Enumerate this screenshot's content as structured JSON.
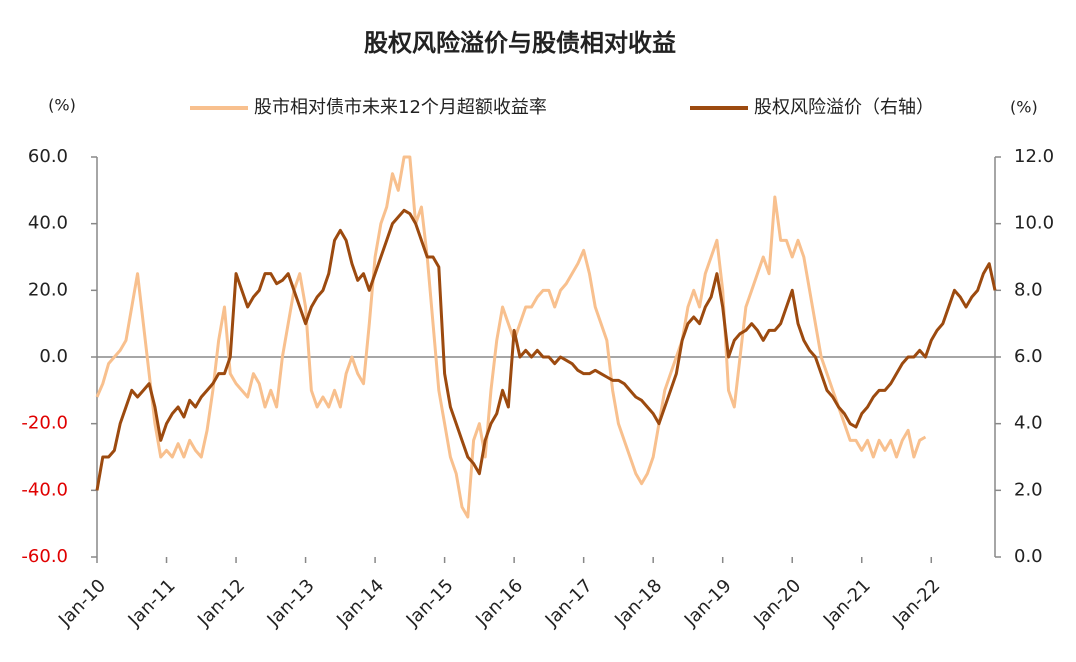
{
  "chart_data": {
    "type": "line",
    "title": "股权风险溢价与股债相对收益",
    "y_label": "(%)",
    "y2_label": "(%)",
    "categories": [
      "Jan-10",
      null,
      null,
      null,
      null,
      null,
      null,
      null,
      null,
      null,
      null,
      null,
      "Jan-11",
      null,
      null,
      null,
      null,
      null,
      null,
      null,
      null,
      null,
      null,
      null,
      "Jan-12",
      null,
      null,
      null,
      null,
      null,
      null,
      null,
      null,
      null,
      null,
      null,
      "Jan-13",
      null,
      null,
      null,
      null,
      null,
      null,
      null,
      null,
      null,
      null,
      null,
      "Jan-14",
      null,
      null,
      null,
      null,
      null,
      null,
      null,
      null,
      null,
      null,
      null,
      "Jan-15",
      null,
      null,
      null,
      null,
      null,
      null,
      null,
      null,
      null,
      null,
      null,
      "Jan-16",
      null,
      null,
      null,
      null,
      null,
      null,
      null,
      null,
      null,
      null,
      null,
      "Jan-17",
      null,
      null,
      null,
      null,
      null,
      null,
      null,
      null,
      null,
      null,
      null,
      "Jan-18",
      null,
      null,
      null,
      null,
      null,
      null,
      null,
      null,
      null,
      null,
      null,
      "Jan-19",
      null,
      null,
      null,
      null,
      null,
      null,
      null,
      null,
      null,
      null,
      null,
      "Jan-20",
      null,
      null,
      null,
      null,
      null,
      null,
      null,
      null,
      null,
      null,
      null,
      "Jan-21",
      null,
      null,
      null,
      null,
      null,
      null,
      null,
      null,
      null,
      null,
      null,
      "Jan-22",
      null,
      null,
      null,
      null,
      null,
      null,
      null,
      null,
      null,
      null,
      null
    ],
    "series": [
      {
        "name": "股市相对债市未来12个月超额收益率",
        "color": "#f8c08e",
        "axis": "y",
        "values": [
          -12,
          -8,
          -2,
          0,
          2,
          5,
          15,
          25,
          10,
          -5,
          -20,
          -30,
          -28,
          -30,
          -26,
          -30,
          -25,
          -28,
          -30,
          -22,
          -10,
          5,
          15,
          -5,
          -8,
          -10,
          -12,
          -5,
          -8,
          -15,
          -10,
          -15,
          0,
          10,
          20,
          25,
          15,
          -10,
          -15,
          -12,
          -15,
          -10,
          -15,
          -5,
          0,
          -5,
          -8,
          10,
          30,
          40,
          45,
          55,
          50,
          60,
          60,
          40,
          45,
          30,
          10,
          -10,
          -20,
          -30,
          -35,
          -45,
          -48,
          -25,
          -20,
          -30,
          -10,
          5,
          15,
          10,
          5,
          10,
          15,
          15,
          18,
          20,
          20,
          15,
          20,
          22,
          25,
          28,
          32,
          25,
          15,
          10,
          5,
          -10,
          -20,
          -25,
          -30,
          -35,
          -38,
          -35,
          -30,
          -20,
          -10,
          -5,
          0,
          5,
          15,
          20,
          15,
          25,
          30,
          35,
          20,
          -10,
          -15,
          0,
          15,
          20,
          25,
          30,
          25,
          48,
          35,
          35,
          30,
          35,
          30,
          20,
          10,
          0,
          -5,
          -10,
          -15,
          -20,
          -25,
          -25,
          -28,
          -25,
          -30,
          -25,
          -28,
          -25,
          -30,
          -25,
          -22,
          -30,
          -25,
          -24,
          null,
          null,
          null,
          null,
          null,
          null,
          null,
          null,
          null,
          null,
          null,
          null
        ]
      },
      {
        "name": "股权风险溢价（右轴）",
        "color": "#9c4a0f",
        "axis": "y2",
        "values": [
          2.0,
          3.0,
          3.0,
          3.2,
          4.0,
          4.5,
          5.0,
          4.8,
          5.0,
          5.2,
          4.5,
          3.5,
          4.0,
          4.3,
          4.5,
          4.2,
          4.7,
          4.5,
          4.8,
          5.0,
          5.2,
          5.5,
          5.5,
          6.0,
          8.5,
          8.0,
          7.5,
          7.8,
          8.0,
          8.5,
          8.5,
          8.2,
          8.3,
          8.5,
          8.0,
          7.5,
          7.0,
          7.5,
          7.8,
          8.0,
          8.5,
          9.5,
          9.8,
          9.5,
          8.8,
          8.3,
          8.5,
          8.0,
          8.5,
          9.0,
          9.5,
          10.0,
          10.2,
          10.4,
          10.3,
          10.0,
          9.5,
          9.0,
          9.0,
          8.7,
          5.5,
          4.5,
          4.0,
          3.5,
          3.0,
          2.8,
          2.5,
          3.5,
          4.0,
          4.3,
          5.0,
          4.5,
          6.8,
          6.0,
          6.2,
          6.0,
          6.2,
          6.0,
          6.0,
          5.8,
          6.0,
          5.9,
          5.8,
          5.6,
          5.5,
          5.5,
          5.6,
          5.5,
          5.4,
          5.3,
          5.3,
          5.2,
          5.0,
          4.8,
          4.7,
          4.5,
          4.3,
          4.0,
          4.5,
          5.0,
          5.5,
          6.5,
          7.0,
          7.2,
          7.0,
          7.5,
          7.8,
          8.5,
          7.5,
          6.0,
          6.5,
          6.7,
          6.8,
          7.0,
          6.8,
          6.5,
          6.8,
          6.8,
          7.0,
          7.5,
          8.0,
          7.0,
          6.5,
          6.2,
          6.0,
          5.5,
          5.0,
          4.8,
          4.5,
          4.3,
          4.0,
          3.9,
          4.3,
          4.5,
          4.8,
          5.0,
          5.0,
          5.2,
          5.5,
          5.8,
          6.0,
          6.0,
          6.2,
          6.0,
          6.5,
          6.8,
          7.0,
          7.5,
          8.0,
          7.8,
          7.5,
          7.8,
          8.0,
          8.5,
          8.8,
          8.0
        ]
      }
    ],
    "ylim": [
      -60,
      60
    ],
    "yticks": [
      {
        "value": -60,
        "label": "-60.0"
      },
      {
        "value": -40,
        "label": "-40.0"
      },
      {
        "value": -20,
        "label": "-20.0"
      },
      {
        "value": 0,
        "label": "0.0"
      },
      {
        "value": 20,
        "label": "20.0"
      },
      {
        "value": 40,
        "label": "40.0"
      },
      {
        "value": 60,
        "label": "60.0"
      }
    ],
    "y2lim": [
      0,
      12
    ],
    "y2ticks": [
      {
        "value": 0,
        "label": "0.0"
      },
      {
        "value": 2,
        "label": "2.0"
      },
      {
        "value": 4,
        "label": "4.0"
      },
      {
        "value": 6,
        "label": "6.0"
      },
      {
        "value": 8,
        "label": "8.0"
      },
      {
        "value": 10,
        "label": "10.0"
      },
      {
        "value": 12,
        "label": "12.0"
      }
    ],
    "negative_tick_color": "#e00000",
    "grid": false,
    "legend": "top"
  }
}
